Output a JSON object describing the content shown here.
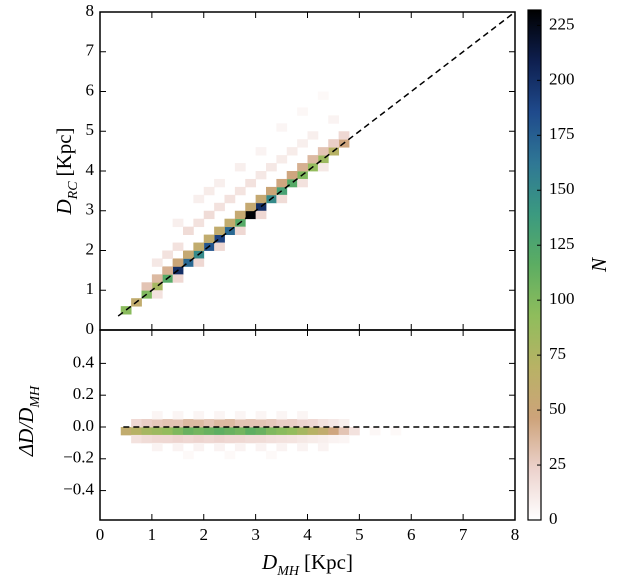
{
  "chart_data": [
    {
      "type": "heatmap",
      "binsize": [
        0.2,
        0.2
      ],
      "ylabel": {
        "main": "D",
        "sub": "RC",
        "unit": "[Kpc]"
      },
      "xlim": [
        0,
        8
      ],
      "ylim": [
        0,
        8
      ],
      "xticks": [
        0,
        1,
        2,
        3,
        4,
        5,
        6,
        7,
        8
      ],
      "yticks": [
        0,
        1,
        2,
        3,
        4,
        5,
        6,
        7,
        8
      ],
      "reference_line": {
        "x": [
          0.35,
          8
        ],
        "y": [
          0.35,
          8
        ]
      },
      "cells": [
        [
          0.4,
          0.4,
          95
        ],
        [
          0.6,
          0.6,
          60
        ],
        [
          0.8,
          0.8,
          100
        ],
        [
          1.0,
          1.0,
          80
        ],
        [
          1.2,
          1.2,
          120
        ],
        [
          1.4,
          1.4,
          200
        ],
        [
          1.6,
          1.6,
          170
        ],
        [
          1.8,
          1.8,
          150
        ],
        [
          2.0,
          2.0,
          180
        ],
        [
          2.2,
          2.2,
          190
        ],
        [
          2.4,
          2.4,
          170
        ],
        [
          2.6,
          2.6,
          120
        ],
        [
          2.8,
          2.8,
          230
        ],
        [
          3.0,
          3.0,
          200
        ],
        [
          3.2,
          3.2,
          150
        ],
        [
          3.4,
          3.4,
          130
        ],
        [
          3.6,
          3.6,
          120
        ],
        [
          3.8,
          3.8,
          100
        ],
        [
          4.0,
          4.0,
          90
        ],
        [
          4.2,
          4.2,
          85
        ],
        [
          4.4,
          4.4,
          70
        ],
        [
          4.6,
          4.6,
          45
        ],
        [
          0.8,
          1.0,
          30
        ],
        [
          1.0,
          1.2,
          35
        ],
        [
          1.2,
          1.4,
          40
        ],
        [
          1.4,
          1.6,
          50
        ],
        [
          1.6,
          1.8,
          55
        ],
        [
          1.8,
          2.0,
          60
        ],
        [
          2.0,
          2.2,
          60
        ],
        [
          2.2,
          2.4,
          60
        ],
        [
          2.4,
          2.6,
          60
        ],
        [
          2.6,
          2.8,
          55
        ],
        [
          2.8,
          3.0,
          55
        ],
        [
          3.0,
          3.2,
          55
        ],
        [
          3.2,
          3.4,
          50
        ],
        [
          3.4,
          3.6,
          45
        ],
        [
          3.6,
          3.8,
          45
        ],
        [
          3.8,
          4.0,
          40
        ],
        [
          4.0,
          4.2,
          35
        ],
        [
          4.2,
          4.4,
          30
        ],
        [
          4.4,
          4.6,
          25
        ],
        [
          4.6,
          4.8,
          20
        ],
        [
          1.0,
          0.8,
          15
        ],
        [
          1.4,
          1.2,
          20
        ],
        [
          1.8,
          1.6,
          20
        ],
        [
          2.2,
          2.0,
          20
        ],
        [
          2.6,
          2.4,
          20
        ],
        [
          3.0,
          2.8,
          20
        ],
        [
          3.4,
          3.2,
          18
        ],
        [
          3.8,
          3.6,
          15
        ],
        [
          4.2,
          4.0,
          12
        ],
        [
          1.0,
          1.6,
          12
        ],
        [
          1.2,
          1.8,
          15
        ],
        [
          1.4,
          2.0,
          15
        ],
        [
          1.6,
          2.4,
          18
        ],
        [
          1.8,
          2.6,
          15
        ],
        [
          2.0,
          2.8,
          18
        ],
        [
          2.2,
          3.0,
          15
        ],
        [
          2.4,
          3.2,
          15
        ],
        [
          2.6,
          3.4,
          14
        ],
        [
          2.8,
          3.6,
          15
        ],
        [
          3.0,
          3.8,
          12
        ],
        [
          3.2,
          4.0,
          12
        ],
        [
          3.4,
          4.2,
          10
        ],
        [
          3.6,
          4.4,
          10
        ],
        [
          3.8,
          4.6,
          8
        ],
        [
          4.0,
          4.8,
          8
        ],
        [
          4.4,
          5.2,
          6
        ],
        [
          1.8,
          3.2,
          8
        ],
        [
          2.2,
          3.6,
          8
        ],
        [
          2.6,
          4.0,
          8
        ],
        [
          3.0,
          4.4,
          6
        ],
        [
          3.4,
          5.0,
          5
        ],
        [
          3.8,
          5.4,
          4
        ],
        [
          4.2,
          5.8,
          3
        ],
        [
          2.0,
          3.4,
          10
        ],
        [
          1.4,
          2.6,
          8
        ]
      ]
    },
    {
      "type": "heatmap",
      "binsize": [
        0.2,
        0.05
      ],
      "ylabel": {
        "main": "ΔD/D",
        "sub": "MH"
      },
      "xlabel": {
        "main": "D",
        "sub": "MH",
        "unit": "[Kpc]"
      },
      "xlim": [
        0,
        8
      ],
      "ylim": [
        -0.585,
        0.61
      ],
      "xticks": [
        0,
        1,
        2,
        3,
        4,
        5,
        6,
        7,
        8
      ],
      "yticks": [
        {
          "value": -0.4,
          "label": "−0.4"
        },
        {
          "value": -0.2,
          "label": "−0.2"
        },
        {
          "value": 0,
          "label": "0.0"
        },
        0.2,
        0.4
      ],
      "reference_line": {
        "x": [
          0.45,
          8
        ],
        "y": [
          0,
          0
        ]
      },
      "cells": [
        [
          0.4,
          -0.05,
          60
        ],
        [
          0.6,
          -0.05,
          70
        ],
        [
          0.8,
          -0.05,
          80
        ],
        [
          1.0,
          -0.05,
          85
        ],
        [
          1.2,
          -0.05,
          90
        ],
        [
          1.4,
          -0.05,
          100
        ],
        [
          1.6,
          -0.05,
          110
        ],
        [
          1.8,
          -0.05,
          105
        ],
        [
          2.0,
          -0.05,
          110
        ],
        [
          2.2,
          -0.05,
          115
        ],
        [
          2.4,
          -0.05,
          110
        ],
        [
          2.6,
          -0.05,
          105
        ],
        [
          2.8,
          -0.05,
          115
        ],
        [
          3.0,
          -0.05,
          110
        ],
        [
          3.2,
          -0.05,
          100
        ],
        [
          3.4,
          -0.05,
          95
        ],
        [
          3.6,
          -0.05,
          90
        ],
        [
          3.8,
          -0.05,
          80
        ],
        [
          4.0,
          -0.05,
          70
        ],
        [
          4.2,
          -0.05,
          60
        ],
        [
          4.4,
          -0.05,
          45
        ],
        [
          4.6,
          -0.05,
          30
        ],
        [
          4.8,
          -0.05,
          15
        ],
        [
          0.6,
          0.0,
          20
        ],
        [
          0.8,
          0.0,
          25
        ],
        [
          1.0,
          0.0,
          28
        ],
        [
          1.2,
          0.0,
          30
        ],
        [
          1.4,
          0.0,
          30
        ],
        [
          1.6,
          0.0,
          35
        ],
        [
          1.8,
          0.0,
          35
        ],
        [
          2.0,
          0.0,
          30
        ],
        [
          2.2,
          0.0,
          35
        ],
        [
          2.4,
          0.0,
          35
        ],
        [
          2.6,
          0.0,
          30
        ],
        [
          2.8,
          0.0,
          30
        ],
        [
          3.0,
          0.0,
          30
        ],
        [
          3.2,
          0.0,
          28
        ],
        [
          3.4,
          0.0,
          25
        ],
        [
          3.6,
          0.0,
          25
        ],
        [
          3.8,
          0.0,
          22
        ],
        [
          4.0,
          0.0,
          20
        ],
        [
          4.2,
          0.0,
          15
        ],
        [
          4.4,
          0.0,
          12
        ],
        [
          4.6,
          0.0,
          8
        ],
        [
          0.6,
          -0.1,
          15
        ],
        [
          0.8,
          -0.1,
          18
        ],
        [
          1.0,
          -0.1,
          20
        ],
        [
          1.2,
          -0.1,
          20
        ],
        [
          1.4,
          -0.1,
          22
        ],
        [
          1.6,
          -0.1,
          20
        ],
        [
          1.8,
          -0.1,
          22
        ],
        [
          2.0,
          -0.1,
          20
        ],
        [
          2.2,
          -0.1,
          22
        ],
        [
          2.4,
          -0.1,
          20
        ],
        [
          2.6,
          -0.1,
          20
        ],
        [
          2.8,
          -0.1,
          18
        ],
        [
          3.0,
          -0.1,
          18
        ],
        [
          3.2,
          -0.1,
          16
        ],
        [
          3.4,
          -0.1,
          15
        ],
        [
          3.6,
          -0.1,
          14
        ],
        [
          3.8,
          -0.1,
          12
        ],
        [
          4.0,
          -0.1,
          10
        ],
        [
          4.2,
          -0.1,
          8
        ],
        [
          4.4,
          -0.1,
          6
        ],
        [
          4.6,
          -0.1,
          5
        ],
        [
          1.0,
          0.05,
          5
        ],
        [
          1.4,
          0.05,
          5
        ],
        [
          1.8,
          0.05,
          5
        ],
        [
          2.2,
          0.05,
          5
        ],
        [
          2.6,
          0.05,
          5
        ],
        [
          3.0,
          0.05,
          5
        ],
        [
          3.4,
          0.05,
          5
        ],
        [
          3.8,
          0.05,
          5
        ],
        [
          1.0,
          -0.15,
          6
        ],
        [
          1.4,
          -0.15,
          6
        ],
        [
          1.8,
          -0.15,
          6
        ],
        [
          2.2,
          -0.15,
          6
        ],
        [
          2.6,
          -0.15,
          6
        ],
        [
          3.0,
          -0.15,
          6
        ],
        [
          3.4,
          -0.15,
          6
        ],
        [
          3.8,
          -0.15,
          6
        ],
        [
          4.2,
          -0.15,
          6
        ],
        [
          1.6,
          -0.2,
          3
        ],
        [
          2.4,
          -0.2,
          3
        ],
        [
          3.2,
          -0.2,
          3
        ],
        [
          5.2,
          -0.05,
          4
        ],
        [
          5.6,
          -0.05,
          3
        ]
      ]
    }
  ],
  "colorbar": {
    "label": "N",
    "lim": [
      0,
      232
    ],
    "ticks": [
      0,
      25,
      50,
      75,
      100,
      125,
      150,
      175,
      200,
      225
    ],
    "colormap": [
      "#ffffff",
      "#ecd2cc",
      "#cda37a",
      "#b8b265",
      "#8fbd5c",
      "#5cad62",
      "#3b9a80",
      "#2f7795",
      "#1f4a8c",
      "#0e1f4f",
      "#000000"
    ]
  }
}
